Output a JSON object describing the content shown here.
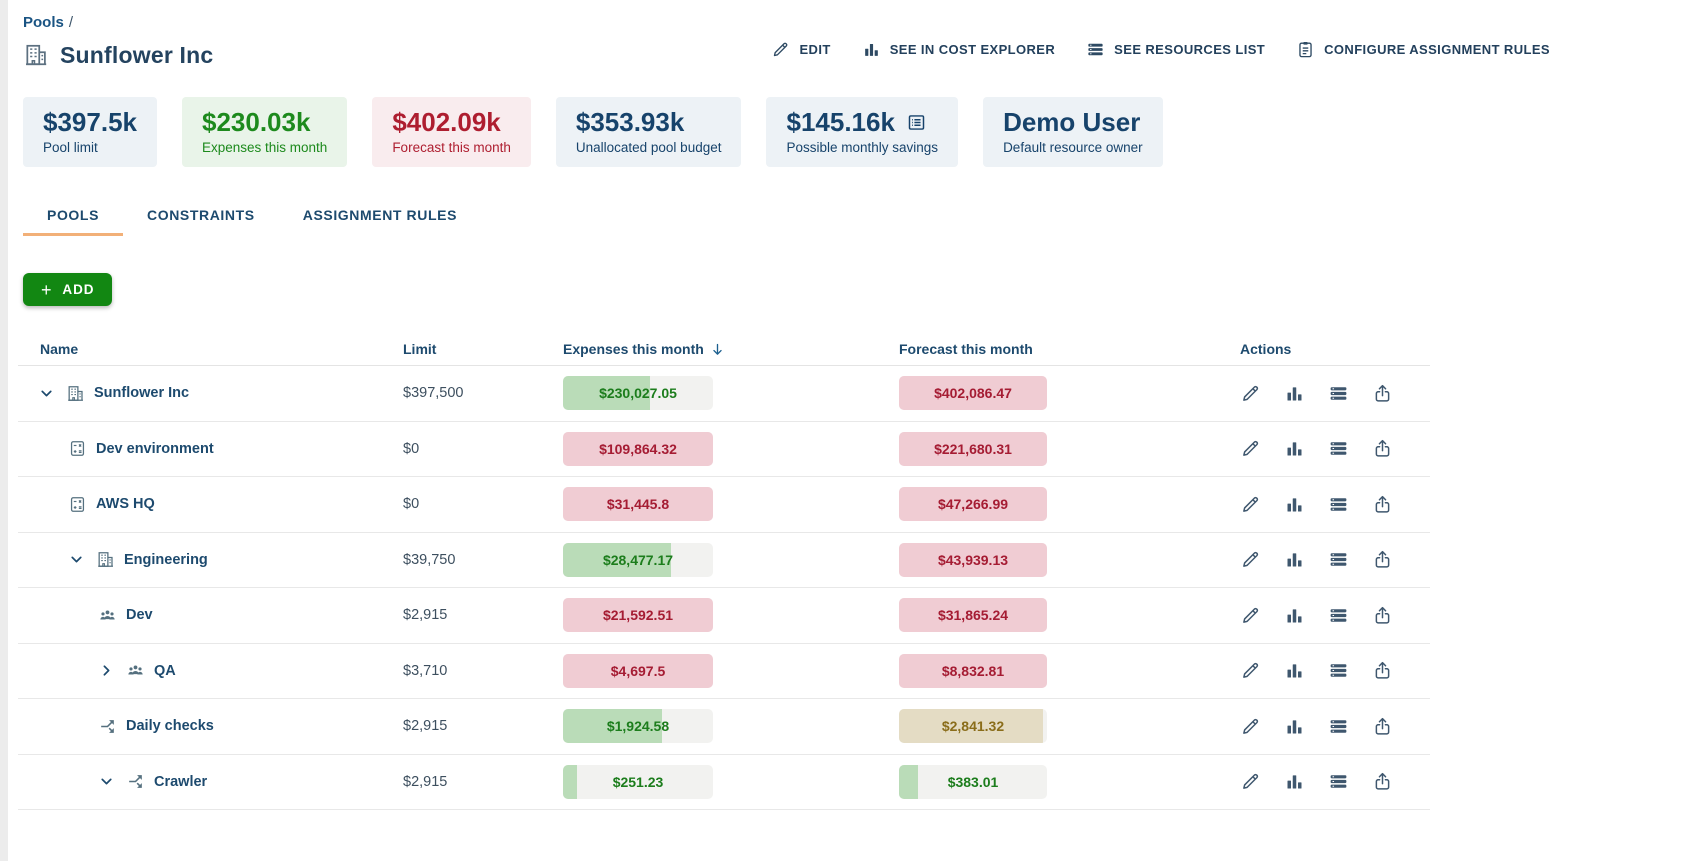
{
  "breadcrumb": {
    "pools": "Pools",
    "separator": "/"
  },
  "page": {
    "title": "Sunflower Inc",
    "title_icon": "organization-icon"
  },
  "header_actions": [
    {
      "name": "edit-button",
      "icon": "pencil-icon",
      "label": "EDIT"
    },
    {
      "name": "see-in-cost-explorer-button",
      "icon": "bar-chart-icon",
      "label": "SEE IN COST EXPLORER"
    },
    {
      "name": "see-resources-list-button",
      "icon": "list-icon",
      "label": "SEE RESOURCES LIST"
    },
    {
      "name": "configure-assignment-rules-button",
      "icon": "clipboard-icon",
      "label": "CONFIGURE ASSIGNMENT RULES"
    }
  ],
  "summary_cards": [
    {
      "value": "$397.5k",
      "label": "Pool limit",
      "style": "default"
    },
    {
      "value": "$230.03k",
      "label": "Expenses this month",
      "style": "green"
    },
    {
      "value": "$402.09k",
      "label": "Forecast this month",
      "style": "red"
    },
    {
      "value": "$353.93k",
      "label": "Unallocated pool budget",
      "style": "default"
    },
    {
      "value": "$145.16k",
      "label": "Possible monthly savings",
      "style": "default",
      "icon": "savings-list-icon"
    },
    {
      "value": "Demo User",
      "label": "Default resource owner",
      "style": "default"
    }
  ],
  "tabs": [
    {
      "label": "POOLS",
      "active": true
    },
    {
      "label": "CONSTRAINTS",
      "active": false
    },
    {
      "label": "ASSIGNMENT RULES",
      "active": false
    }
  ],
  "add_button": {
    "label": "ADD"
  },
  "table": {
    "columns": [
      {
        "key": "name",
        "label": "Name",
        "sortable": true
      },
      {
        "key": "limit",
        "label": "Limit",
        "sortable": true
      },
      {
        "key": "exp",
        "label": "Expenses this month",
        "sortable": true,
        "sorted": "desc"
      },
      {
        "key": "fore",
        "label": "Forecast this month",
        "sortable": true
      },
      {
        "key": "act",
        "label": "Actions",
        "sortable": false
      }
    ],
    "row_actions": [
      {
        "name": "edit-pool-button",
        "icon": "pencil-icon"
      },
      {
        "name": "pool-cost-explorer-button",
        "icon": "bar-chart-icon"
      },
      {
        "name": "pool-resources-button",
        "icon": "list-icon"
      },
      {
        "name": "pool-share-button",
        "icon": "share-icon"
      }
    ],
    "rows": [
      {
        "name": "Sunflower Inc",
        "icon": "organization-icon",
        "level": 0,
        "expandable": true,
        "expanded": true,
        "limit": "$397,500",
        "expenses": {
          "text": "$230,027.05",
          "type": "green",
          "fill_percent": 58
        },
        "forecast": {
          "text": "$402,086.47",
          "type": "red",
          "fill_percent": 100
        }
      },
      {
        "name": "Dev environment",
        "icon": "budget-icon",
        "level": 1,
        "expandable": false,
        "expanded": false,
        "limit": "$0",
        "expenses": {
          "text": "$109,864.32",
          "type": "red",
          "fill_percent": 100
        },
        "forecast": {
          "text": "$221,680.31",
          "type": "red",
          "fill_percent": 100
        }
      },
      {
        "name": "AWS HQ",
        "icon": "budget-icon",
        "level": 1,
        "expandable": false,
        "expanded": false,
        "limit": "$0",
        "expenses": {
          "text": "$31,445.8",
          "type": "red",
          "fill_percent": 100
        },
        "forecast": {
          "text": "$47,266.99",
          "type": "red",
          "fill_percent": 100
        }
      },
      {
        "name": "Engineering",
        "icon": "organization-icon",
        "level": 1,
        "expandable": true,
        "expanded": true,
        "limit": "$39,750",
        "expenses": {
          "text": "$28,477.17",
          "type": "green",
          "fill_percent": 72
        },
        "forecast": {
          "text": "$43,939.13",
          "type": "red",
          "fill_percent": 100
        }
      },
      {
        "name": "Dev",
        "icon": "team-icon",
        "level": 2,
        "expandable": false,
        "expanded": false,
        "limit": "$2,915",
        "expenses": {
          "text": "$21,592.51",
          "type": "red",
          "fill_percent": 100
        },
        "forecast": {
          "text": "$31,865.24",
          "type": "red",
          "fill_percent": 100
        }
      },
      {
        "name": "QA",
        "icon": "team-icon",
        "level": 2,
        "expandable": true,
        "expanded": false,
        "limit": "$3,710",
        "expenses": {
          "text": "$4,697.5",
          "type": "red",
          "fill_percent": 100
        },
        "forecast": {
          "text": "$8,832.81",
          "type": "red",
          "fill_percent": 100
        }
      },
      {
        "name": "Daily checks",
        "icon": "pipeline-icon",
        "level": 2,
        "expandable": false,
        "expanded": false,
        "limit": "$2,915",
        "expenses": {
          "text": "$1,924.58",
          "type": "green",
          "fill_percent": 66
        },
        "forecast": {
          "text": "$2,841.32",
          "type": "tan",
          "fill_percent": 97
        }
      },
      {
        "name": "Crawler",
        "icon": "pipeline-icon",
        "level": 2,
        "expandable": true,
        "expanded": true,
        "limit": "$2,915",
        "expenses": {
          "text": "$251.23",
          "type": "green",
          "fill_percent": 9
        },
        "forecast": {
          "text": "$383.01",
          "type": "green",
          "fill_percent": 13
        }
      }
    ]
  },
  "colors": {
    "navy": "#1d4a6e",
    "green": "#1d8a1d",
    "red": "#ae1e30",
    "add_button_green": "#128712",
    "tab_indicator": "#f2b078",
    "card_default_bg": "#edf2f6",
    "card_green_bg": "#e9f4e9",
    "card_red_bg": "#f9ecee",
    "pill_base": "#f2f2f0",
    "pill_green_fill": "#badcb8",
    "pill_red_fill": "#f0ccd3",
    "pill_tan_fill": "#e4dcc4",
    "pill_tan_text": "#8a6d1a"
  }
}
